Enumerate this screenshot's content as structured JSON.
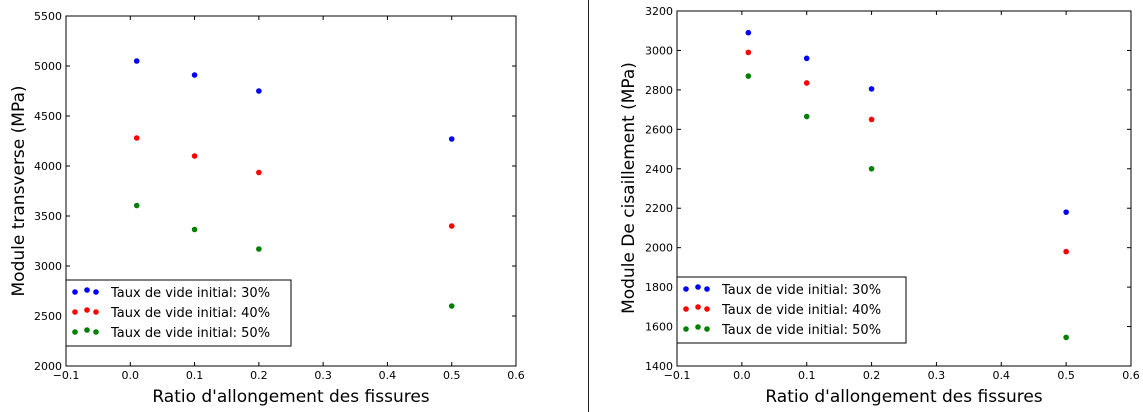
{
  "chart_data": [
    {
      "type": "scatter",
      "title": "",
      "xlabel": "Ratio d'allongement des fissures",
      "ylabel": "Module transverse (MPa)",
      "xlim": [
        -0.1,
        0.6
      ],
      "ylim": [
        2000,
        5500
      ],
      "xticks": [
        -0.1,
        0.0,
        0.1,
        0.2,
        0.3,
        0.4,
        0.5,
        0.6
      ],
      "xtick_labels": [
        "−0.1",
        "0.0",
        "0.1",
        "0.2",
        "0.3",
        "0.4",
        "0.5",
        "0.6"
      ],
      "yticks": [
        2000,
        2500,
        3000,
        3500,
        4000,
        4500,
        5000,
        5500
      ],
      "ytick_labels": [
        "2000",
        "2500",
        "3000",
        "3500",
        "4000",
        "4500",
        "5000",
        "5500"
      ],
      "grid": false,
      "legend_position": "bottom-left",
      "series": [
        {
          "name": "Taux de vide initial: 30%",
          "color": "#0000ff",
          "x": [
            0.01,
            0.1,
            0.2,
            0.5
          ],
          "y": [
            5050,
            4910,
            4750,
            4270
          ]
        },
        {
          "name": "Taux de vide initial: 40%",
          "color": "#ff0000",
          "x": [
            0.01,
            0.1,
            0.2,
            0.5
          ],
          "y": [
            4280,
            4100,
            3935,
            3400
          ]
        },
        {
          "name": "Taux de vide initial: 50%",
          "color": "#008000",
          "x": [
            0.01,
            0.1,
            0.2,
            0.5
          ],
          "y": [
            3605,
            3365,
            3170,
            2600
          ]
        }
      ]
    },
    {
      "type": "scatter",
      "title": "",
      "xlabel": "Ratio d'allongement des fissures",
      "ylabel": "Module De cisaillement (MPa)",
      "xlim": [
        -0.1,
        0.6
      ],
      "ylim": [
        1400,
        3200
      ],
      "xticks": [
        -0.1,
        0.0,
        0.1,
        0.2,
        0.3,
        0.4,
        0.5,
        0.6
      ],
      "xtick_labels": [
        "−0.1",
        "0.0",
        "0.1",
        "0.2",
        "0.3",
        "0.4",
        "0.5",
        "0.6"
      ],
      "yticks": [
        1400,
        1600,
        1800,
        2000,
        2200,
        2400,
        2600,
        2800,
        3000,
        3200
      ],
      "ytick_labels": [
        "1400",
        "1600",
        "1800",
        "2000",
        "2200",
        "2400",
        "2600",
        "2800",
        "3000",
        "3200"
      ],
      "grid": false,
      "legend_position": "bottom-left",
      "series": [
        {
          "name": "Taux de vide initial: 30%",
          "color": "#0000ff",
          "x": [
            0.01,
            0.1,
            0.2,
            0.5
          ],
          "y": [
            3090,
            2960,
            2805,
            2180
          ]
        },
        {
          "name": "Taux de vide initial: 40%",
          "color": "#ff0000",
          "x": [
            0.01,
            0.1,
            0.2,
            0.5
          ],
          "y": [
            2990,
            2835,
            2650,
            1980
          ]
        },
        {
          "name": "Taux de vide initial: 50%",
          "color": "#008000",
          "x": [
            0.01,
            0.1,
            0.2,
            0.5
          ],
          "y": [
            2870,
            2665,
            2400,
            1545
          ]
        }
      ]
    }
  ]
}
